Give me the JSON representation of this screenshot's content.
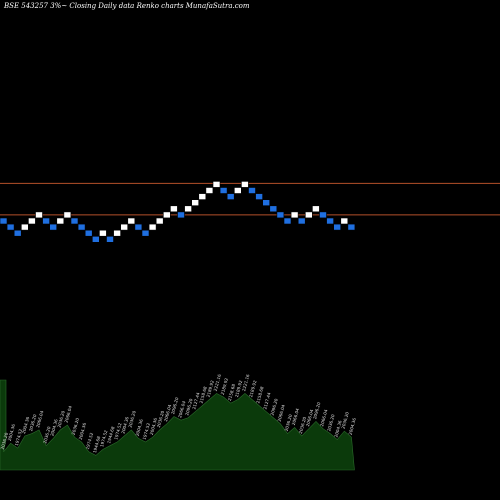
{
  "chart_data": {
    "type": "renko",
    "title": "BSE 543257 3%~  Closing Daily data  Renko  charts MunafaSutra.com",
    "colors": {
      "background": "#000000",
      "up_brick": "#ffffff",
      "down_brick": "#1f6fe0",
      "level_line": "#b4502a",
      "volume_fill": "#0b3a0b",
      "volume_edge": "#2a6a2a",
      "volume_label": "#dddddd"
    },
    "grid": false,
    "levels": [
      1,
      6
    ],
    "bricks": [
      {
        "dir": "down",
        "level": 0
      },
      {
        "dir": "down",
        "level": -1
      },
      {
        "dir": "down",
        "level": -2
      },
      {
        "dir": "up",
        "level": -1
      },
      {
        "dir": "up",
        "level": 0
      },
      {
        "dir": "up",
        "level": 1
      },
      {
        "dir": "down",
        "level": 0
      },
      {
        "dir": "down",
        "level": -1
      },
      {
        "dir": "up",
        "level": 0
      },
      {
        "dir": "up",
        "level": 1
      },
      {
        "dir": "down",
        "level": 0
      },
      {
        "dir": "down",
        "level": -1
      },
      {
        "dir": "down",
        "level": -2
      },
      {
        "dir": "down",
        "level": -3
      },
      {
        "dir": "up",
        "level": -2
      },
      {
        "dir": "down",
        "level": -3
      },
      {
        "dir": "up",
        "level": -2
      },
      {
        "dir": "up",
        "level": -1
      },
      {
        "dir": "up",
        "level": 0
      },
      {
        "dir": "down",
        "level": -1
      },
      {
        "dir": "down",
        "level": -2
      },
      {
        "dir": "up",
        "level": -1
      },
      {
        "dir": "up",
        "level": 0
      },
      {
        "dir": "up",
        "level": 1
      },
      {
        "dir": "up",
        "level": 2
      },
      {
        "dir": "down",
        "level": 1
      },
      {
        "dir": "up",
        "level": 2
      },
      {
        "dir": "up",
        "level": 3
      },
      {
        "dir": "up",
        "level": 4
      },
      {
        "dir": "up",
        "level": 5
      },
      {
        "dir": "up",
        "level": 6
      },
      {
        "dir": "down",
        "level": 5
      },
      {
        "dir": "down",
        "level": 4
      },
      {
        "dir": "up",
        "level": 5
      },
      {
        "dir": "up",
        "level": 6
      },
      {
        "dir": "down",
        "level": 5
      },
      {
        "dir": "down",
        "level": 4
      },
      {
        "dir": "down",
        "level": 3
      },
      {
        "dir": "down",
        "level": 2
      },
      {
        "dir": "down",
        "level": 1
      },
      {
        "dir": "down",
        "level": 0
      },
      {
        "dir": "up",
        "level": 1
      },
      {
        "dir": "down",
        "level": 0
      },
      {
        "dir": "up",
        "level": 1
      },
      {
        "dir": "up",
        "level": 2
      },
      {
        "dir": "down",
        "level": 1
      },
      {
        "dir": "down",
        "level": 0
      },
      {
        "dir": "down",
        "level": -1
      },
      {
        "dir": "up",
        "level": 0
      },
      {
        "dir": "down",
        "level": -1
      }
    ],
    "volume_axis_max": 1,
    "volume": [
      0.15,
      0.22,
      0.18,
      0.28,
      0.3,
      0.33,
      0.2,
      0.26,
      0.33,
      0.37,
      0.27,
      0.23,
      0.15,
      0.12,
      0.17,
      0.2,
      0.23,
      0.28,
      0.33,
      0.26,
      0.23,
      0.27,
      0.33,
      0.38,
      0.44,
      0.41,
      0.43,
      0.48,
      0.53,
      0.58,
      0.63,
      0.6,
      0.55,
      0.58,
      0.63,
      0.58,
      0.53,
      0.48,
      0.43,
      0.38,
      0.3,
      0.35,
      0.28,
      0.34,
      0.4,
      0.34,
      0.3,
      0.25,
      0.32,
      0.27
    ],
    "brick_labels": [
      "2036.20",
      "2004.36",
      "1974.52",
      "2004.36",
      "2036.20",
      "2066.04",
      "2036.20",
      "2004.36",
      "2036.20",
      "2066.04",
      "2036.20",
      "2004.36",
      "1974.52",
      "1944.68",
      "1974.52",
      "1944.68",
      "1974.52",
      "2004.36",
      "2036.20",
      "2004.36",
      "1974.52",
      "2004.36",
      "2036.20",
      "2066.04",
      "2096.20",
      "2066.04",
      "2096.20",
      "2127.44",
      "2158.68",
      "2189.92",
      "2221.16",
      "2189.92",
      "2158.68",
      "2189.92",
      "2221.16",
      "2189.92",
      "2158.68",
      "2127.44",
      "2096.20",
      "2066.04",
      "2036.20",
      "2066.04",
      "2036.20",
      "2066.04",
      "2096.20",
      "2066.04",
      "2036.20",
      "2004.36",
      "2036.20",
      "2004.36"
    ]
  }
}
